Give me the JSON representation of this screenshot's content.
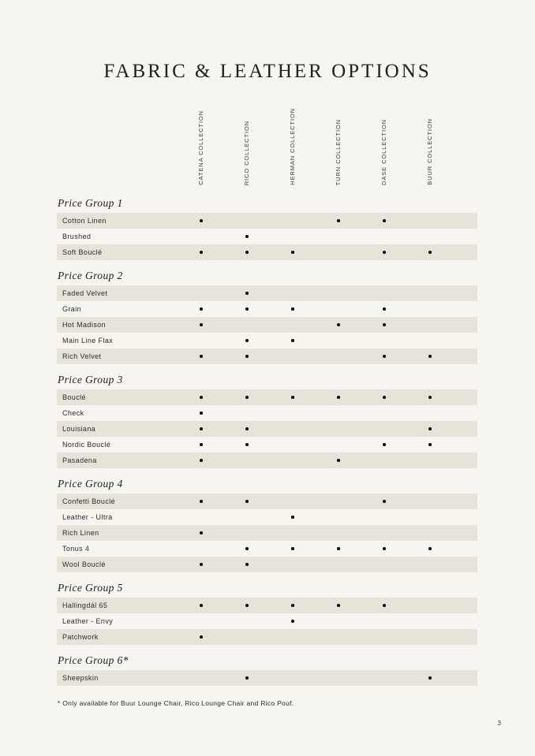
{
  "page": {
    "title": "FABRIC & LEATHER OPTIONS",
    "footnote": "* Only available for Buur Lounge Chair, Rico Lounge Chair and Rico Pouf.",
    "page_number": "3",
    "colors": {
      "background": "#f7f5f0",
      "row_shade": "#e8e3d9",
      "text": "#1d1d1b"
    }
  },
  "table": {
    "columns": [
      "CATENA COLLECTION",
      "RICO COLLECTION",
      "HERMAN COLLECTION",
      "TURN COLLECTION",
      "DASE COLLECTION",
      "BUUR COLLECTION"
    ],
    "groups": [
      {
        "name": "Price Group 1",
        "rows": [
          {
            "label": "Cotton Linen",
            "marks": [
              1,
              0,
              0,
              1,
              1,
              0
            ]
          },
          {
            "label": "Brushed",
            "marks": [
              0,
              1,
              0,
              0,
              0,
              0
            ]
          },
          {
            "label": "Soft Bouclé",
            "marks": [
              1,
              1,
              1,
              0,
              1,
              1
            ]
          }
        ]
      },
      {
        "name": "Price Group 2",
        "rows": [
          {
            "label": "Faded Velvet",
            "marks": [
              0,
              1,
              0,
              0,
              0,
              0
            ]
          },
          {
            "label": "Grain",
            "marks": [
              1,
              1,
              1,
              0,
              1,
              0
            ]
          },
          {
            "label": "Hot Madison",
            "marks": [
              1,
              0,
              0,
              1,
              1,
              0
            ]
          },
          {
            "label": "Main Line Flax",
            "marks": [
              0,
              1,
              1,
              0,
              0,
              0
            ]
          },
          {
            "label": "Rich Velvet",
            "marks": [
              1,
              1,
              0,
              0,
              1,
              1
            ]
          }
        ]
      },
      {
        "name": "Price Group 3",
        "rows": [
          {
            "label": "Bouclé",
            "marks": [
              1,
              1,
              1,
              1,
              1,
              1
            ]
          },
          {
            "label": "Check",
            "marks": [
              1,
              0,
              0,
              0,
              0,
              0
            ]
          },
          {
            "label": "Louisiana",
            "marks": [
              1,
              1,
              0,
              0,
              0,
              1
            ]
          },
          {
            "label": "Nordic Bouclé",
            "marks": [
              1,
              1,
              0,
              0,
              1,
              1
            ]
          },
          {
            "label": "Pasadena",
            "marks": [
              1,
              0,
              0,
              1,
              0,
              0
            ]
          }
        ]
      },
      {
        "name": "Price Group 4",
        "rows": [
          {
            "label": "Confetti Bouclé",
            "marks": [
              1,
              1,
              0,
              0,
              1,
              0
            ]
          },
          {
            "label": "Leather - Ultra",
            "marks": [
              0,
              0,
              1,
              0,
              0,
              0
            ]
          },
          {
            "label": "Rich Linen",
            "marks": [
              1,
              0,
              0,
              0,
              0,
              0
            ]
          },
          {
            "label": "Tonus 4",
            "marks": [
              0,
              1,
              1,
              1,
              1,
              1
            ]
          },
          {
            "label": "Wool Bouclé",
            "marks": [
              1,
              1,
              0,
              0,
              0,
              0
            ]
          }
        ]
      },
      {
        "name": "Price Group 5",
        "rows": [
          {
            "label": "Hallingdál 65",
            "marks": [
              1,
              1,
              1,
              1,
              1,
              0
            ]
          },
          {
            "label": "Leather - Envy",
            "marks": [
              0,
              0,
              1,
              0,
              0,
              0
            ]
          },
          {
            "label": "Patchwork",
            "marks": [
              1,
              0,
              0,
              0,
              0,
              0
            ]
          }
        ]
      },
      {
        "name": "Price Group 6*",
        "rows": [
          {
            "label": "Sheepskin",
            "marks": [
              0,
              1,
              0,
              0,
              0,
              1
            ]
          }
        ]
      }
    ]
  }
}
